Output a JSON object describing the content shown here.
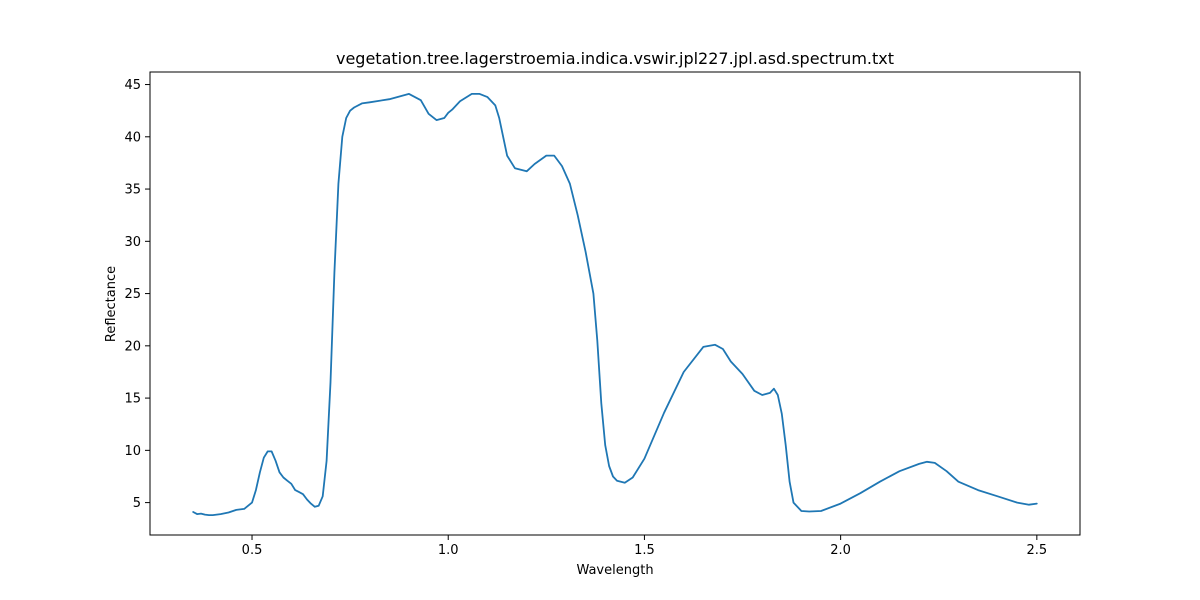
{
  "chart_data": {
    "type": "line",
    "title": "vegetation.tree.lagerstroemia.indica.vswir.jpl227.jpl.asd.spectrum.txt",
    "xlabel": "Wavelength",
    "ylabel": "Reflectance",
    "xlim": [
      0.24,
      2.61
    ],
    "ylim": [
      1.9,
      46.2
    ],
    "xticks": [
      0.5,
      1.0,
      1.5,
      2.0,
      2.5
    ],
    "xtick_labels": [
      "0.5",
      "1.0",
      "1.5",
      "2.0",
      "2.5"
    ],
    "yticks": [
      5,
      10,
      15,
      20,
      25,
      30,
      35,
      40,
      45
    ],
    "ytick_labels": [
      "5",
      "10",
      "15",
      "20",
      "25",
      "30",
      "35",
      "40",
      "45"
    ],
    "grid": false,
    "legend": "none",
    "series": [
      {
        "color": "#1f77b4",
        "x": [
          0.35,
          0.36,
          0.37,
          0.38,
          0.39,
          0.4,
          0.42,
          0.44,
          0.46,
          0.48,
          0.5,
          0.51,
          0.52,
          0.53,
          0.54,
          0.55,
          0.56,
          0.57,
          0.58,
          0.59,
          0.6,
          0.61,
          0.62,
          0.63,
          0.64,
          0.65,
          0.66,
          0.67,
          0.68,
          0.69,
          0.7,
          0.71,
          0.72,
          0.73,
          0.74,
          0.75,
          0.76,
          0.78,
          0.8,
          0.85,
          0.9,
          0.93,
          0.95,
          0.97,
          0.99,
          1.0,
          1.01,
          1.03,
          1.06,
          1.08,
          1.1,
          1.12,
          1.13,
          1.15,
          1.17,
          1.2,
          1.22,
          1.25,
          1.27,
          1.29,
          1.31,
          1.33,
          1.35,
          1.37,
          1.38,
          1.39,
          1.4,
          1.41,
          1.42,
          1.43,
          1.45,
          1.47,
          1.5,
          1.55,
          1.6,
          1.65,
          1.68,
          1.7,
          1.72,
          1.75,
          1.78,
          1.8,
          1.82,
          1.83,
          1.84,
          1.85,
          1.86,
          1.87,
          1.88,
          1.9,
          1.92,
          1.95,
          2.0,
          2.05,
          2.1,
          2.15,
          2.2,
          2.22,
          2.24,
          2.27,
          2.3,
          2.35,
          2.4,
          2.45,
          2.48,
          2.5
        ],
        "y": [
          4.1,
          3.9,
          3.95,
          3.85,
          3.8,
          3.8,
          3.9,
          4.05,
          4.3,
          4.4,
          5.0,
          6.2,
          7.9,
          9.3,
          9.9,
          9.9,
          9.0,
          7.9,
          7.4,
          7.1,
          6.8,
          6.2,
          6.0,
          5.8,
          5.3,
          4.9,
          4.6,
          4.7,
          5.6,
          9.0,
          16.5,
          27.0,
          35.5,
          40.0,
          41.8,
          42.5,
          42.8,
          43.2,
          43.3,
          43.6,
          44.1,
          43.5,
          42.2,
          41.6,
          41.8,
          42.3,
          42.6,
          43.4,
          44.1,
          44.1,
          43.8,
          43.0,
          41.8,
          38.2,
          37.0,
          36.7,
          37.4,
          38.2,
          38.2,
          37.2,
          35.5,
          32.5,
          29.0,
          25.0,
          20.5,
          14.5,
          10.5,
          8.5,
          7.5,
          7.1,
          6.9,
          7.4,
          9.2,
          13.6,
          17.5,
          19.9,
          20.1,
          19.7,
          18.5,
          17.3,
          15.7,
          15.3,
          15.5,
          15.9,
          15.3,
          13.5,
          10.5,
          7.0,
          5.0,
          4.2,
          4.15,
          4.2,
          4.9,
          5.9,
          7.0,
          8.0,
          8.7,
          8.9,
          8.8,
          8.0,
          7.0,
          6.2,
          5.6,
          5.0,
          4.8,
          4.9
        ]
      }
    ]
  }
}
